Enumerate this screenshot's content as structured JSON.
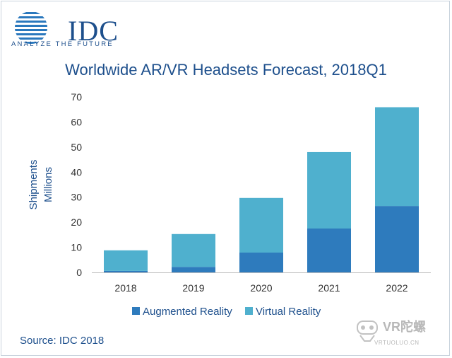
{
  "logo": {
    "brand": "IDC",
    "tagline": "ANALYZE THE FUTURE"
  },
  "title": "Worldwide AR/VR Headsets Forecast, 2018Q1",
  "source": "Source: IDC 2018",
  "watermark": {
    "name": "VR陀螺",
    "site": "VRTUOLUO.CN"
  },
  "colors": {
    "ar": "#2e7bbd",
    "vr": "#4fb0ce",
    "brand": "#1d4f8c"
  },
  "chart_data": {
    "type": "bar",
    "stacked": true,
    "categories": [
      "2018",
      "2019",
      "2020",
      "2021",
      "2022"
    ],
    "series": [
      {
        "name": "Augmented Reality",
        "values": [
          0.6,
          2.2,
          7.9,
          17.5,
          26.5
        ]
      },
      {
        "name": "Virtual Reality",
        "values": [
          8.2,
          13.1,
          21.8,
          30.5,
          39.4
        ]
      }
    ],
    "ylabel": "Shipments Millions",
    "ylabel_lines": [
      "Shipments",
      "Millions"
    ],
    "xlabel": "",
    "ylim": [
      0,
      70
    ],
    "yticks": [
      "0",
      "10",
      "20",
      "30",
      "40",
      "50",
      "60",
      "70"
    ],
    "legend_position": "bottom",
    "grid": false
  }
}
